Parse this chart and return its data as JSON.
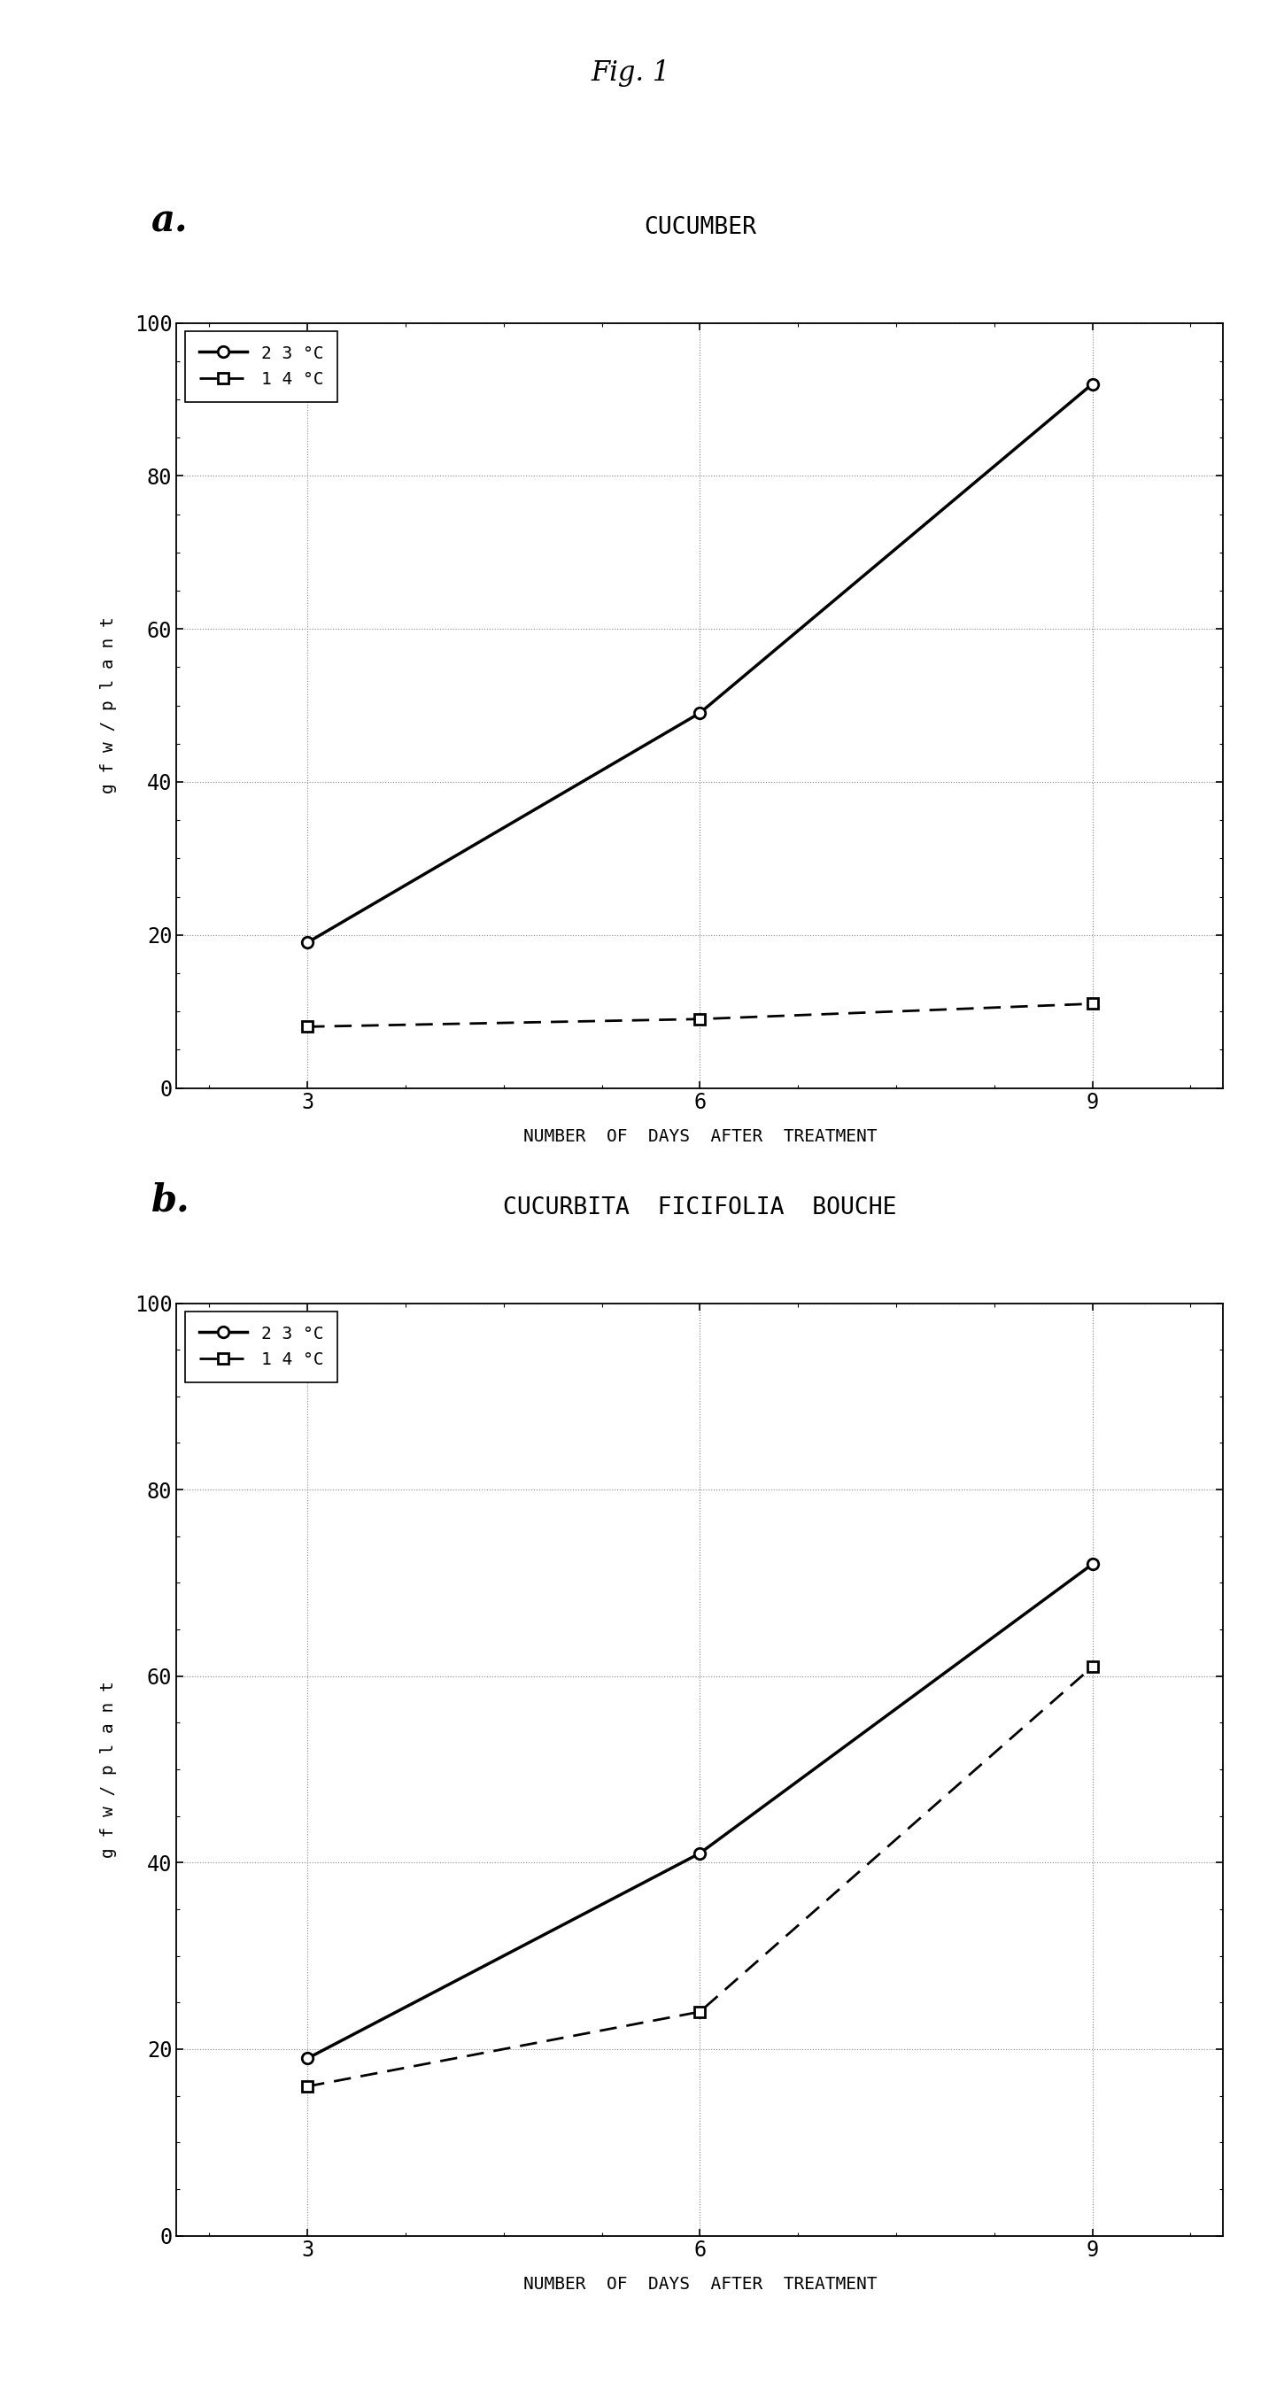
{
  "fig_title": "Fig. 1",
  "fig_title_fontsize": 22,
  "fig_title_style": "italic",
  "panels": [
    {
      "label": "a.",
      "title": "CUCUMBER",
      "ylabel": "g f w / p l a n t",
      "xlabel": "NUMBER  OF  DAYS  AFTER  TREATMENT",
      "xlim": [
        2,
        10
      ],
      "ylim": [
        0,
        100
      ],
      "xticks": [
        3,
        6,
        9
      ],
      "yticks": [
        0,
        20,
        40,
        60,
        80,
        100
      ],
      "series": [
        {
          "label": "2 3 °C",
          "x": [
            3,
            6,
            9
          ],
          "y": [
            19,
            49,
            92
          ],
          "color": "#000000",
          "linestyle": "solid",
          "linewidth": 2.5,
          "marker": "o",
          "markersize": 9,
          "markerfacecolor": "white",
          "markeredgewidth": 2.0,
          "dashes": []
        },
        {
          "label": "1 4 °C",
          "x": [
            3,
            6,
            9
          ],
          "y": [
            8,
            9,
            11
          ],
          "color": "#000000",
          "linestyle": "dashed",
          "linewidth": 2.0,
          "marker": "s",
          "markersize": 9,
          "markerfacecolor": "white",
          "markeredgewidth": 2.0,
          "dashes": [
            7,
            4
          ]
        }
      ]
    },
    {
      "label": "b.",
      "title": "CUCURBITA  FICIFOLIA  BOUCHE",
      "ylabel": "g f w / p l a n t",
      "xlabel": "NUMBER  OF  DAYS  AFTER  TREATMENT",
      "xlim": [
        2,
        10
      ],
      "ylim": [
        0,
        100
      ],
      "xticks": [
        3,
        6,
        9
      ],
      "yticks": [
        0,
        20,
        40,
        60,
        80,
        100
      ],
      "series": [
        {
          "label": "2 3 °C",
          "x": [
            3,
            6,
            9
          ],
          "y": [
            19,
            41,
            72
          ],
          "color": "#000000",
          "linestyle": "solid",
          "linewidth": 2.5,
          "marker": "o",
          "markersize": 9,
          "markerfacecolor": "white",
          "markeredgewidth": 2.0,
          "dashes": []
        },
        {
          "label": "1 4 °C",
          "x": [
            3,
            6,
            9
          ],
          "y": [
            16,
            24,
            61
          ],
          "color": "#000000",
          "linestyle": "dashed",
          "linewidth": 2.0,
          "marker": "s",
          "markersize": 9,
          "markerfacecolor": "white",
          "markeredgewidth": 2.0,
          "dashes": [
            7,
            4
          ]
        }
      ]
    }
  ],
  "background_color": "#ffffff",
  "grid_color": "#888888",
  "grid_linestyle": "dotted",
  "grid_linewidth": 0.8,
  "tick_fontsize": 17,
  "label_fontsize": 14,
  "title_fontsize": 19,
  "legend_fontsize": 14,
  "panel_label_fontsize": 30
}
